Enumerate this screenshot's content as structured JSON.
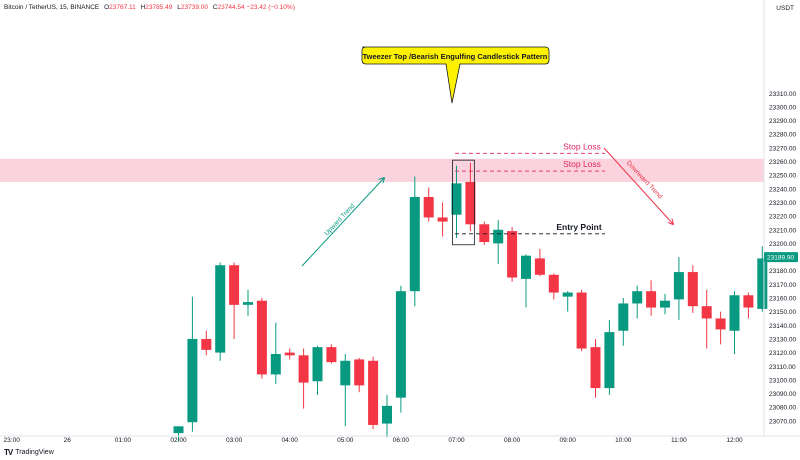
{
  "header": {
    "symbol": "Bitcoin / TetherUS, 15, BINANCE",
    "open_label": "O",
    "open": "23767.11",
    "high_label": "H",
    "high": "23785.49",
    "low_label": "L",
    "low": "23739.00",
    "close_label": "C",
    "close": "23744.54",
    "change": "−23.42 (−0.10%)"
  },
  "currency": "USDT",
  "footer": {
    "brand": "TradingView"
  },
  "colors": {
    "bull": "#089981",
    "bear": "#f23645",
    "zone": "#fbd3de",
    "callout": "#fff200",
    "stoploss": "#e0245e",
    "downtrend": "#e8334a"
  },
  "chart_data": {
    "type": "candlestick",
    "title": "",
    "ylim": [
      23060,
      23320
    ],
    "yticks": [
      23070,
      23080,
      23090,
      23100,
      23110,
      23120,
      23130,
      23140,
      23150,
      23160,
      23170,
      23180,
      23190,
      23200,
      23210,
      23220,
      23230,
      23240,
      23250,
      23260,
      23270,
      23280,
      23290,
      23300,
      23310
    ],
    "xticks": [
      {
        "i": -12,
        "label": "23:00"
      },
      {
        "i": -8,
        "label": "26"
      },
      {
        "i": -4,
        "label": "01:00"
      },
      {
        "i": 0,
        "label": "02:00"
      },
      {
        "i": 4,
        "label": "03:00"
      },
      {
        "i": 8,
        "label": "04:00"
      },
      {
        "i": 12,
        "label": "05:00"
      },
      {
        "i": 16,
        "label": "06:00"
      },
      {
        "i": 20,
        "label": "07:00"
      },
      {
        "i": 24,
        "label": "08:00"
      },
      {
        "i": 28,
        "label": "09:00"
      },
      {
        "i": 32,
        "label": "10:00"
      },
      {
        "i": 36,
        "label": "11:00"
      },
      {
        "i": 40,
        "label": "12:00"
      }
    ],
    "candles": [
      {
        "i": 0,
        "o": 23061,
        "h": 23066,
        "l": 23055,
        "c": 23066
      },
      {
        "i": 1,
        "o": 23069,
        "h": 23161,
        "l": 23062,
        "c": 23130
      },
      {
        "i": 2,
        "o": 23130,
        "h": 23136,
        "l": 23118,
        "c": 23122
      },
      {
        "i": 3,
        "o": 23120,
        "h": 23186,
        "l": 23114,
        "c": 23184
      },
      {
        "i": 4,
        "o": 23184,
        "h": 23186,
        "l": 23130,
        "c": 23155
      },
      {
        "i": 5,
        "o": 23155,
        "h": 23166,
        "l": 23147,
        "c": 23157
      },
      {
        "i": 6,
        "o": 23158,
        "h": 23160,
        "l": 23101,
        "c": 23104
      },
      {
        "i": 7,
        "o": 23104,
        "h": 23142,
        "l": 23097,
        "c": 23119
      },
      {
        "i": 8,
        "o": 23120,
        "h": 23123,
        "l": 23115,
        "c": 23118
      },
      {
        "i": 9,
        "o": 23118,
        "h": 23123,
        "l": 23079,
        "c": 23098
      },
      {
        "i": 10,
        "o": 23099,
        "h": 23125,
        "l": 23089,
        "c": 23124
      },
      {
        "i": 11,
        "o": 23124,
        "h": 23126,
        "l": 23112,
        "c": 23113
      },
      {
        "i": 12,
        "o": 23096,
        "h": 23119,
        "l": 23066,
        "c": 23114
      },
      {
        "i": 13,
        "o": 23115,
        "h": 23116,
        "l": 23091,
        "c": 23096
      },
      {
        "i": 14,
        "o": 23114,
        "h": 23117,
        "l": 23064,
        "c": 23067
      },
      {
        "i": 15,
        "o": 23068,
        "h": 23089,
        "l": 23058,
        "c": 23081
      },
      {
        "i": 16,
        "o": 23087,
        "h": 23169,
        "l": 23076,
        "c": 23165
      },
      {
        "i": 17,
        "o": 23165,
        "h": 23249,
        "l": 23154,
        "c": 23234
      },
      {
        "i": 18,
        "o": 23234,
        "h": 23241,
        "l": 23216,
        "c": 23219
      },
      {
        "i": 19,
        "o": 23219,
        "h": 23230,
        "l": 23205,
        "c": 23216
      },
      {
        "i": 20,
        "o": 23221,
        "h": 23257,
        "l": 23204,
        "c": 23244
      },
      {
        "i": 21,
        "o": 23245,
        "h": 23259,
        "l": 23209,
        "c": 23214
      },
      {
        "i": 22,
        "o": 23214,
        "h": 23216,
        "l": 23199,
        "c": 23201
      },
      {
        "i": 23,
        "o": 23200,
        "h": 23217,
        "l": 23185,
        "c": 23210
      },
      {
        "i": 24,
        "o": 23209,
        "h": 23212,
        "l": 23172,
        "c": 23175
      },
      {
        "i": 25,
        "o": 23174,
        "h": 23192,
        "l": 23153,
        "c": 23191
      },
      {
        "i": 26,
        "o": 23189,
        "h": 23196,
        "l": 23176,
        "c": 23177
      },
      {
        "i": 27,
        "o": 23177,
        "h": 23178,
        "l": 23159,
        "c": 23164
      },
      {
        "i": 28,
        "o": 23161,
        "h": 23165,
        "l": 23150,
        "c": 23164
      },
      {
        "i": 29,
        "o": 23164,
        "h": 23166,
        "l": 23121,
        "c": 23123
      },
      {
        "i": 30,
        "o": 23124,
        "h": 23130,
        "l": 23087,
        "c": 23094
      },
      {
        "i": 31,
        "o": 23094,
        "h": 23144,
        "l": 23089,
        "c": 23135
      },
      {
        "i": 32,
        "o": 23136,
        "h": 23160,
        "l": 23125,
        "c": 23156
      },
      {
        "i": 33,
        "o": 23156,
        "h": 23169,
        "l": 23145,
        "c": 23165
      },
      {
        "i": 34,
        "o": 23165,
        "h": 23173,
        "l": 23147,
        "c": 23153
      },
      {
        "i": 35,
        "o": 23153,
        "h": 23163,
        "l": 23148,
        "c": 23158
      },
      {
        "i": 36,
        "o": 23159,
        "h": 23190,
        "l": 23144,
        "c": 23179
      },
      {
        "i": 37,
        "o": 23179,
        "h": 23184,
        "l": 23149,
        "c": 23154
      },
      {
        "i": 38,
        "o": 23154,
        "h": 23166,
        "l": 23123,
        "c": 23145
      },
      {
        "i": 39,
        "o": 23145,
        "h": 23150,
        "l": 23126,
        "c": 23137
      },
      {
        "i": 40,
        "o": 23136,
        "h": 23165,
        "l": 23119,
        "c": 23162
      },
      {
        "i": 41,
        "o": 23162,
        "h": 23164,
        "l": 23145,
        "c": 23153
      },
      {
        "i": 42,
        "o": 23152,
        "h": 23198,
        "l": 23150,
        "c": 23189
      }
    ],
    "last_price_label": "23189.90",
    "last_price": 23189.9,
    "stop_loss_zone": [
      23245,
      23262
    ],
    "annotations": {
      "callout": "Tweezer Top /Bearish Engulfing Candlestick Pattern",
      "stop_loss_upper": {
        "label": "Stop Loss",
        "price": 23266
      },
      "stop_loss_lower": {
        "label": "Stop Loss",
        "price": 23253
      },
      "entry_point": {
        "label": "Entry Point",
        "price": 23207
      },
      "uptrend": "Upward Trend",
      "downtrend": "Downward Trend"
    }
  }
}
